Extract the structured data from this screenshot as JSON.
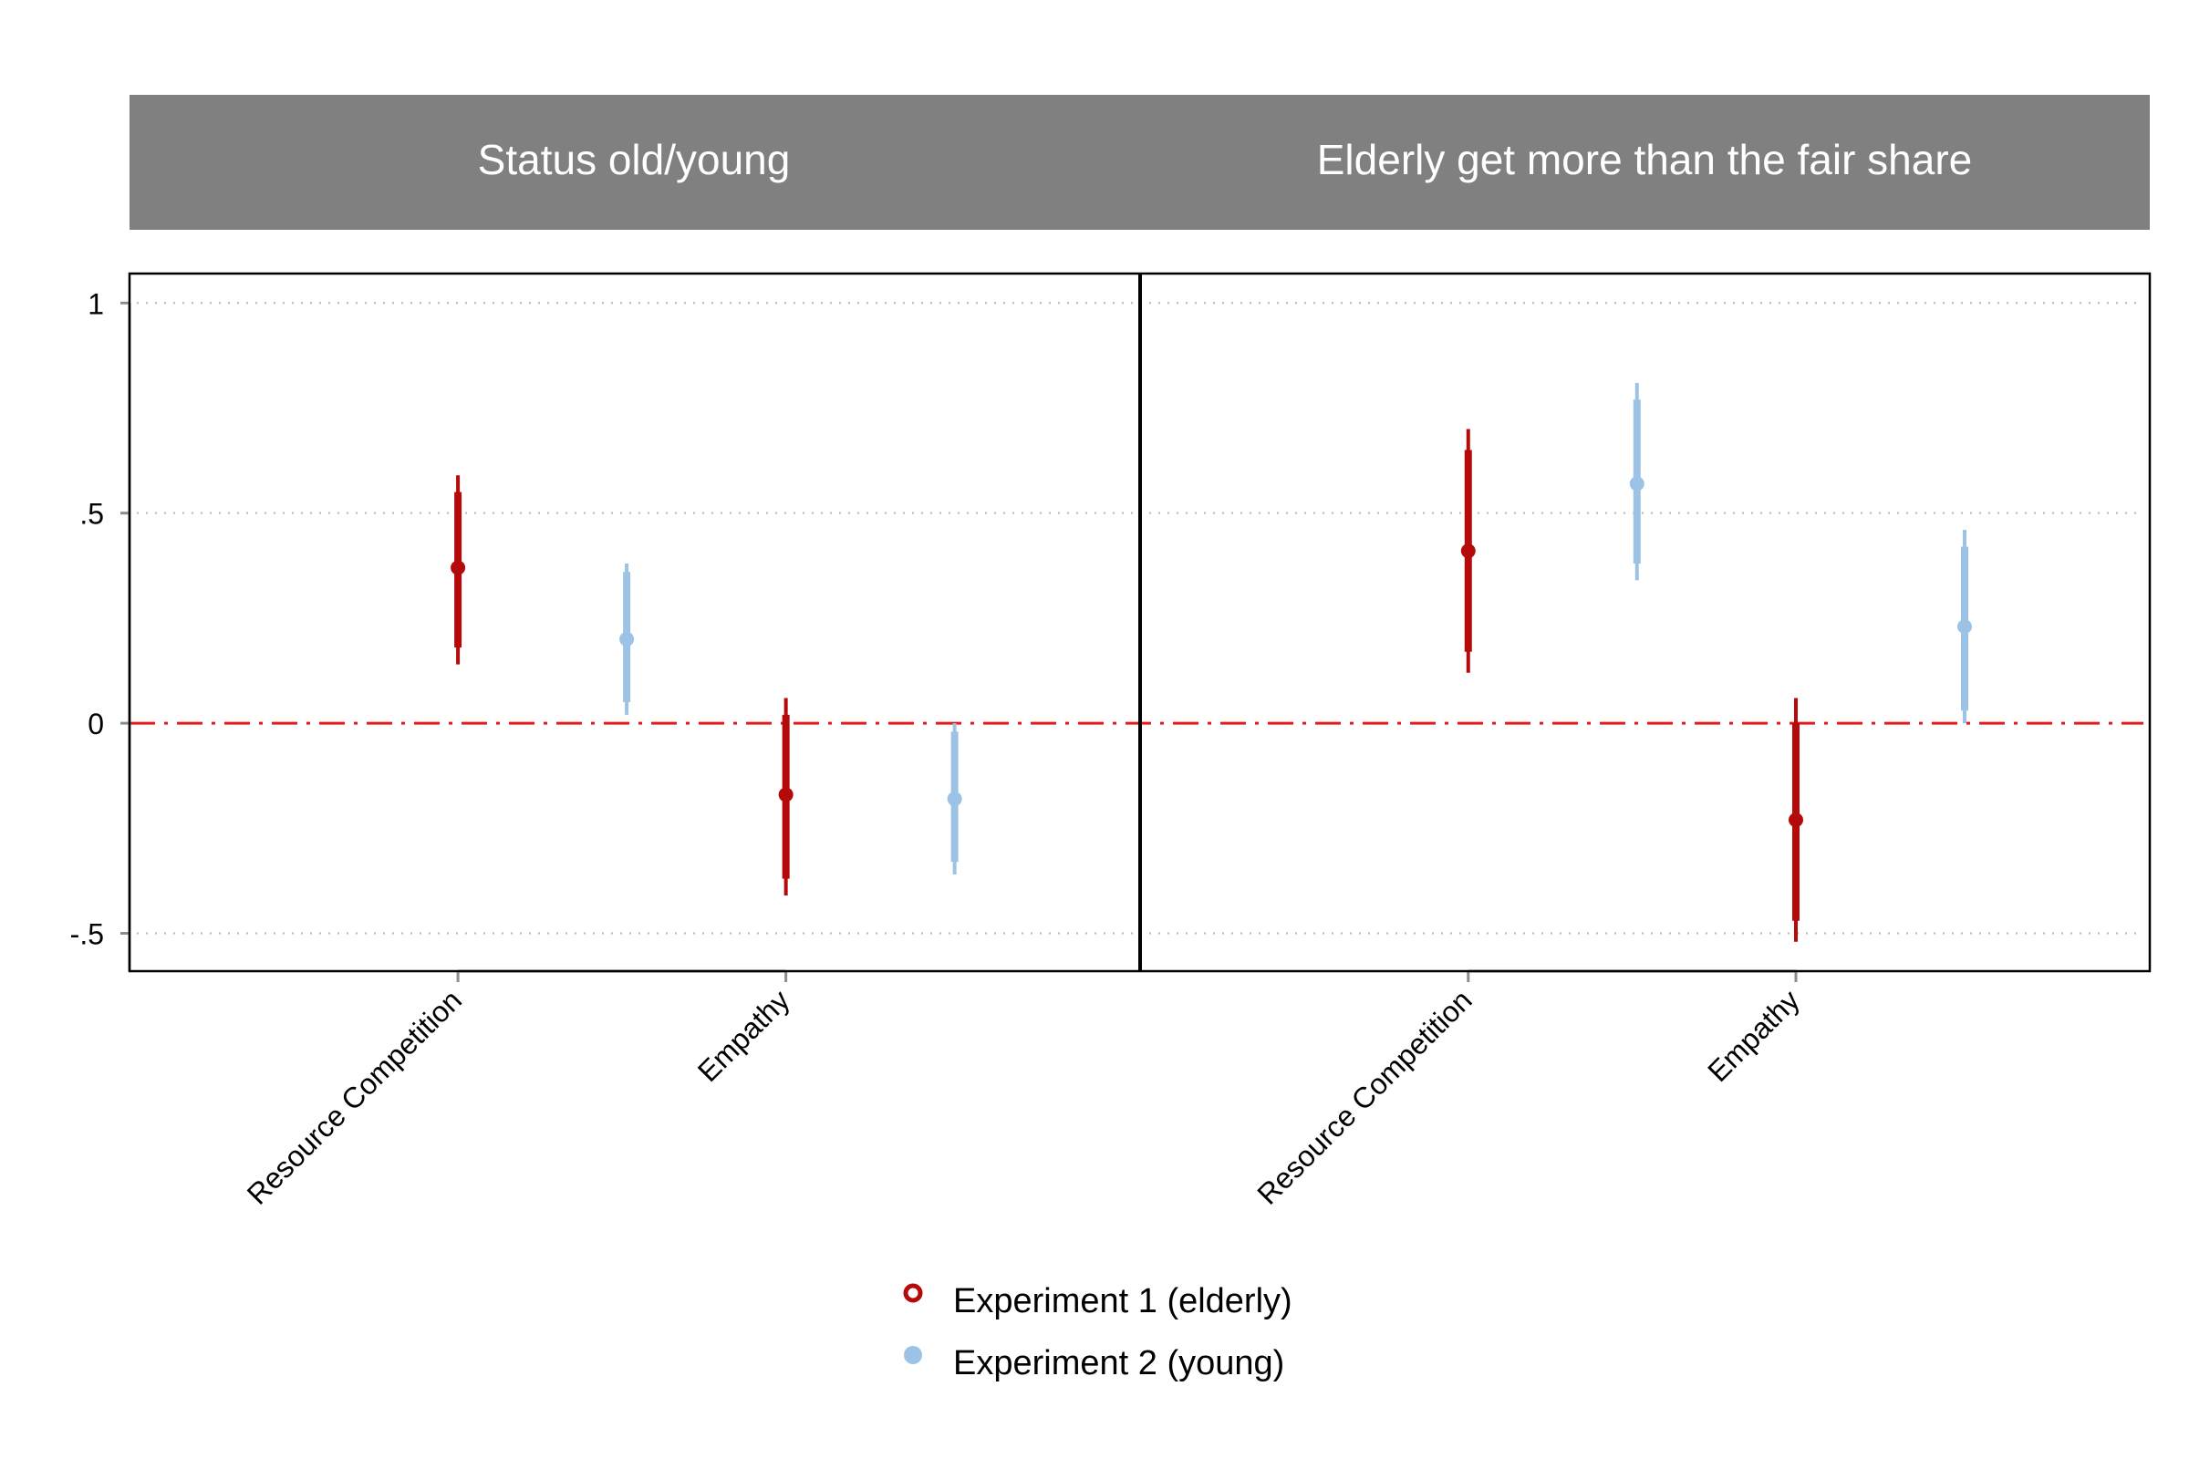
{
  "chart_data": {
    "type": "scatter",
    "panels": [
      {
        "title": "Status old/young",
        "categories": [
          "Resource Competition",
          "Empathy"
        ],
        "series": [
          {
            "name": "Experiment 1 (elderly)",
            "color": "#b50a0a",
            "points": [
              {
                "category": "Resource Competition",
                "estimate": 0.37,
                "ci90": [
                  0.18,
                  0.55
                ],
                "ci95": [
                  0.14,
                  0.59
                ]
              },
              {
                "category": "Empathy",
                "estimate": -0.17,
                "ci90": [
                  -0.37,
                  0.02
                ],
                "ci95": [
                  -0.41,
                  0.06
                ]
              }
            ]
          },
          {
            "name": "Experiment 2 (young)",
            "color": "#9cc3e6",
            "points": [
              {
                "category": "Resource Competition",
                "estimate": 0.2,
                "ci90": [
                  0.05,
                  0.36
                ],
                "ci95": [
                  0.02,
                  0.38
                ]
              },
              {
                "category": "Empathy",
                "estimate": -0.18,
                "ci90": [
                  -0.33,
                  -0.02
                ],
                "ci95": [
                  -0.36,
                  0.0
                ]
              }
            ]
          }
        ]
      },
      {
        "title": "Elderly get more than the fair share",
        "categories": [
          "Resource Competition",
          "Empathy"
        ],
        "series": [
          {
            "name": "Experiment 1 (elderly)",
            "color": "#b50a0a",
            "points": [
              {
                "category": "Resource Competition",
                "estimate": 0.41,
                "ci90": [
                  0.17,
                  0.65
                ],
                "ci95": [
                  0.12,
                  0.7
                ]
              },
              {
                "category": "Empathy",
                "estimate": -0.23,
                "ci90": [
                  -0.47,
                  0.0
                ],
                "ci95": [
                  -0.52,
                  0.06
                ]
              }
            ]
          },
          {
            "name": "Experiment 2 (young)",
            "color": "#9cc3e6",
            "points": [
              {
                "category": "Resource Competition",
                "estimate": 0.57,
                "ci90": [
                  0.38,
                  0.77
                ],
                "ci95": [
                  0.34,
                  0.81
                ]
              },
              {
                "category": "Empathy",
                "estimate": 0.23,
                "ci90": [
                  0.03,
                  0.42
                ],
                "ci95": [
                  0.0,
                  0.46
                ]
              }
            ]
          }
        ]
      }
    ],
    "y_ticks": [
      {
        "value": 1,
        "label": "1"
      },
      {
        "value": 0.5,
        "label": ".5"
      },
      {
        "value": 0,
        "label": "0"
      },
      {
        "value": -0.5,
        "label": "-.5"
      }
    ],
    "ylim": [
      -0.59,
      1.07
    ],
    "reference_line": 0,
    "grid": true,
    "legend": {
      "placement": "bottom-center",
      "entries": [
        {
          "label": "Experiment 1 (elderly)",
          "color": "#b50a0a",
          "marker": "hollow-circle"
        },
        {
          "label": "Experiment 2 (young)",
          "color": "#9cc3e6",
          "marker": "filled-circle"
        }
      ]
    }
  }
}
